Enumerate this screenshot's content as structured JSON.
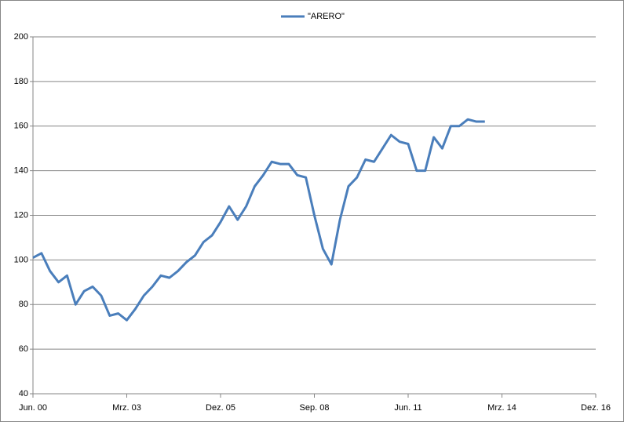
{
  "chart_data": {
    "type": "line",
    "categories": [
      "Jun. 00",
      null,
      null,
      null,
      null,
      null,
      null,
      null,
      null,
      null,
      null,
      "Mrz. 03",
      null,
      null,
      null,
      null,
      null,
      null,
      null,
      null,
      null,
      null,
      "Dez. 05",
      null,
      null,
      null,
      null,
      null,
      null,
      null,
      null,
      null,
      null,
      "Sep. 08",
      null,
      null,
      null,
      null,
      null,
      null,
      null,
      null,
      null,
      null,
      "Jun. 11",
      null,
      null,
      null,
      null,
      null,
      null,
      null,
      null,
      null,
      null,
      "Mrz. 14",
      null,
      null,
      null,
      null,
      null,
      null,
      null,
      null,
      null,
      null,
      "Dez. 16"
    ],
    "series": [
      {
        "name": "\"ARERO\"",
        "color": "#4a7ebb",
        "values": [
          101,
          103,
          95,
          90,
          93,
          80,
          86,
          88,
          84,
          75,
          76,
          73,
          78,
          84,
          88,
          93,
          92,
          95,
          99,
          102,
          108,
          111,
          117,
          124,
          118,
          124,
          133,
          138,
          144,
          143,
          143,
          138,
          137,
          120,
          105,
          98,
          118,
          133,
          137,
          145,
          144,
          150,
          156,
          153,
          152,
          140,
          140,
          155,
          150,
          160,
          160,
          163,
          162,
          162,
          null,
          null,
          null,
          null,
          null,
          null,
          null,
          null,
          null,
          null,
          null,
          null,
          null
        ]
      }
    ],
    "ylim": [
      40,
      200
    ],
    "yticks": [
      40,
      60,
      80,
      100,
      120,
      140,
      160,
      180,
      200
    ],
    "grid": true,
    "legend": "top"
  }
}
